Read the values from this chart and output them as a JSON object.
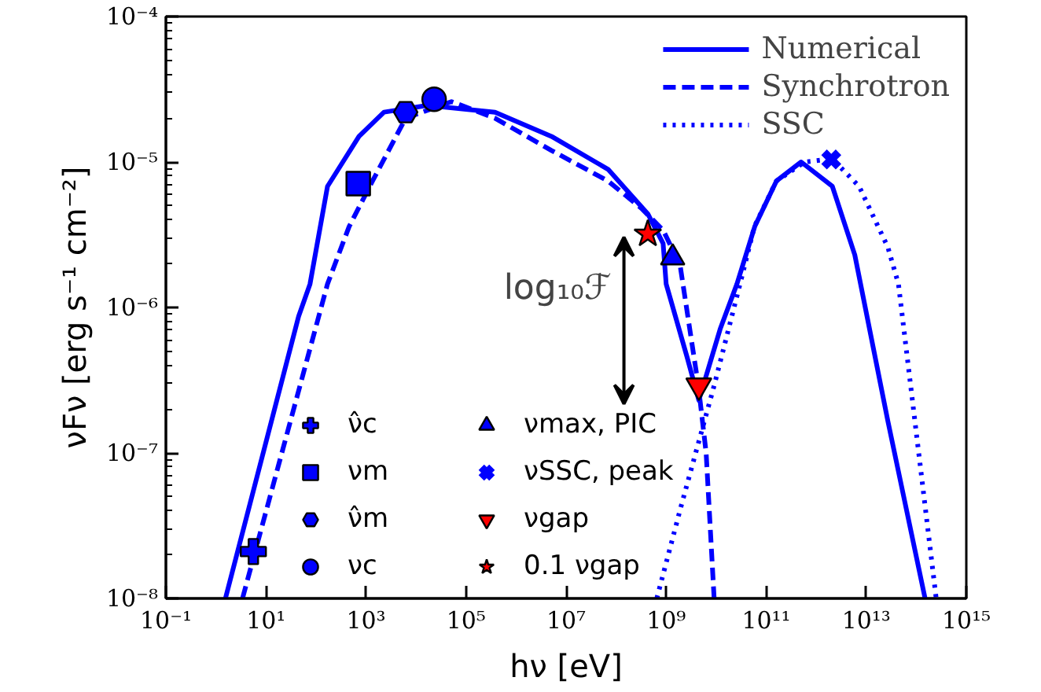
{
  "chart_data": {
    "type": "line",
    "xlabel": "hν [eV]",
    "ylabel": "νFν [erg s⁻¹ cm⁻²]",
    "log": "xy",
    "grid": false,
    "legend": "top right",
    "xlim": [
      0.1,
      1000000000000000.0
    ],
    "ylim": [
      1e-08,
      0.0001
    ],
    "xticks": [
      {
        "value": 0.1,
        "label": "10⁻¹"
      },
      {
        "value": 10,
        "label": "10¹"
      },
      {
        "value": 1000,
        "label": "10³"
      },
      {
        "value": 100000,
        "label": "10⁵"
      },
      {
        "value": 10000000.0,
        "label": "10⁷"
      },
      {
        "value": 1000000000.0,
        "label": "10⁹"
      },
      {
        "value": 100000000000.0,
        "label": "10¹¹"
      },
      {
        "value": 10000000000000.0,
        "label": "10¹³"
      },
      {
        "value": 1000000000000000.0,
        "label": "10¹⁵"
      }
    ],
    "yticks": [
      {
        "value": 1e-08,
        "label": "10⁻⁸"
      },
      {
        "value": 1e-07,
        "label": "10⁻⁷"
      },
      {
        "value": 1e-06,
        "label": "10⁻⁶"
      },
      {
        "value": 1e-05,
        "label": "10⁻⁵"
      },
      {
        "value": 0.0001,
        "label": "10⁻⁴"
      }
    ],
    "annotations": [
      "log₁₀ℱ"
    ],
    "series": [
      {
        "name": "Numerical",
        "line_style": "solid",
        "color": "#0000ff",
        "x": [
          1.55,
          45,
          76,
          170,
          725,
          2290,
          17000,
          380000,
          5100000.0,
          69000000.0,
          430000000.0,
          870000000.0,
          1000000000.0,
          2600000000.0,
          4500000000.0,
          12000000000.0,
          26000000000.0,
          59000000000.0,
          160000000000.0,
          500000000000.0,
          2100000000000.0,
          5900000000000.0,
          27000000000000.0,
          150000000000000.0
        ],
        "values": [
          1e-08,
          8.7e-07,
          1.45e-06,
          6.8e-06,
          1.5e-05,
          2.2e-05,
          2.45e-05,
          2.2e-05,
          1.5e-05,
          8.9e-06,
          4.4e-06,
          2.75e-06,
          1.45e-06,
          4.6e-07,
          2.3e-07,
          7.1e-07,
          1.45e-06,
          3.6e-06,
          7.4e-06,
          1e-05,
          6.8e-06,
          2.3e-06,
          1.66e-07,
          1e-08
        ]
      },
      {
        "name": "Synchrotron",
        "line_style": "dashed",
        "color": "#0000ff",
        "x": [
          3.4,
          170,
          460,
          1350,
          6200,
          51000,
          380000,
          5100000.0,
          69000000.0,
          320000000.0,
          870000000.0,
          1900000000.0,
          4400000000.0,
          6300000000.0,
          9100000000.0
        ],
        "values": [
          1e-08,
          1.45e-06,
          3.6e-06,
          7.4e-06,
          2e-05,
          2.6e-05,
          2e-05,
          1.2e-05,
          7.4e-06,
          4.8e-06,
          3.4e-06,
          1.95e-06,
          2.9e-07,
          1e-07,
          1e-08
        ]
      },
      {
        "name": "SSC",
        "line_style": "dotted",
        "color": "#0000ff",
        "x": [
          650000000.0,
          1950000000.0,
          9100000000.0,
          30000000000.0,
          58000000000.0,
          160000000000.0,
          590000000000.0,
          2100000000000.0,
          7200000000000.0,
          27000000000000.0,
          44000000000000.0,
          250000000000000.0
        ],
        "values": [
          1e-08,
          4.2e-08,
          2.9e-07,
          1.45e-06,
          3.6e-06,
          7.4e-06,
          1e-05,
          1.05e-05,
          6.8e-06,
          2.6e-06,
          1.45e-06,
          1e-08
        ]
      },
      {
        "name": "ν̂c",
        "type": "scatter",
        "marker": "cross",
        "color": "#0000ff",
        "x": [
          5.6
        ],
        "values": [
          2.1e-08
        ]
      },
      {
        "name": "νm",
        "type": "scatter",
        "marker": "square",
        "color": "#0000ff",
        "x": [
          700
        ],
        "values": [
          7.1e-06
        ]
      },
      {
        "name": "ν̂m",
        "type": "scatter",
        "color": "#0000ff",
        "x": [
          6200
        ],
        "values": [
          2.2e-05
        ]
      },
      {
        "name": "νc",
        "type": "scatter",
        "marker": "circle",
        "color": "#0000ff",
        "x": [
          23000
        ],
        "values": [
          2.7e-05
        ]
      },
      {
        "name": "νmax, PIC",
        "type": "scatter",
        "marker": "triangle",
        "color": "#0000ff",
        "x": [
          1350000000.0
        ],
        "values": [
          2.2e-06
        ]
      },
      {
        "name": "νSSC, peak",
        "type": "scatter",
        "marker": "x",
        "color": "#0000ff",
        "x": [
          2000000000000.0
        ],
        "values": [
          1.04e-05
        ]
      },
      {
        "name": "νgap",
        "type": "scatter",
        "marker": "triangle_down",
        "color": "#ff0000",
        "x": [
          4500000000.0
        ],
        "values": [
          2.9e-07
        ]
      },
      {
        "name": "0.1 νgap",
        "type": "scatter",
        "marker": "star",
        "color": "#ff0000",
        "x": [
          430000000.0
        ],
        "values": [
          3.2e-06
        ]
      }
    ]
  }
}
